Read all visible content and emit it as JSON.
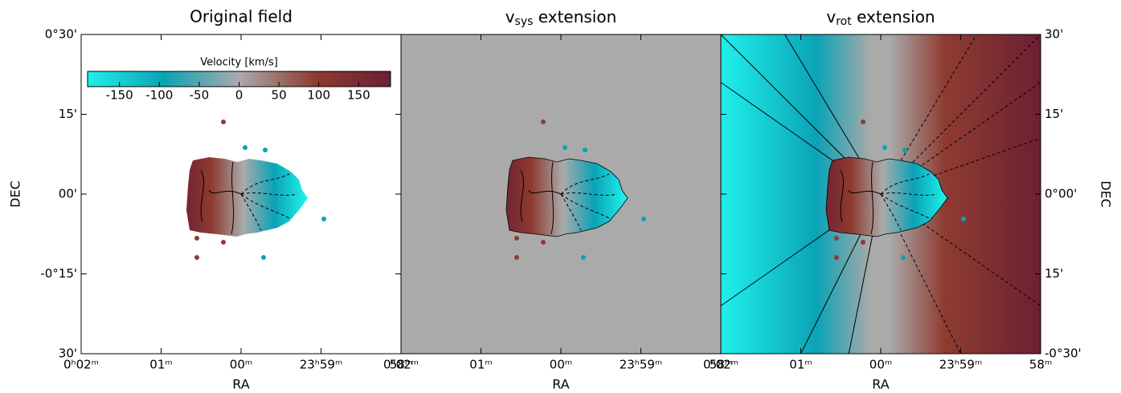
{
  "chart_data": [
    {
      "type": "image",
      "title": "Original field",
      "background": "none",
      "xlabel": "RA",
      "ylabel": "DEC",
      "xlim": [
        2,
        -2
      ],
      "xticks": [
        {
          "value": 2,
          "label": "0ʰ02ᵐ"
        },
        {
          "value": 1,
          "label": "01ᵐ"
        },
        {
          "value": 0,
          "label": "00ᵐ"
        },
        {
          "value": -1,
          "label": "23ʰ59ᵐ"
        },
        {
          "value": -2,
          "label": "58ᵐ"
        }
      ],
      "ylim": [
        -30,
        30
      ],
      "yticks": [
        {
          "value": 30,
          "label": "0°30'"
        },
        {
          "value": 15,
          "label": "15'"
        },
        {
          "value": 0,
          "label": "00'"
        },
        {
          "value": -15,
          "label": "-0°15'"
        },
        {
          "value": -30,
          "label": "30'"
        }
      ],
      "colors": [
        "#1ff0ec",
        "#0aa3b6",
        "#aaaaaa",
        "#8e3b31",
        "#6c2034"
      ],
      "colorbar": {
        "label": "Velocity [km/s]",
        "lim": [
          -190,
          190
        ],
        "ticks": [
          -150,
          -100,
          -50,
          0,
          50,
          100,
          150
        ]
      }
    },
    {
      "type": "image",
      "title": [
        "v",
        "sys",
        " extension"
      ],
      "background": "systemic",
      "xlabel": "RA",
      "xlim": [
        2,
        -2
      ],
      "xticks": [
        {
          "value": 2,
          "label": "0ʰ02ᵐ"
        },
        {
          "value": 1,
          "label": "01ᵐ"
        },
        {
          "value": 0,
          "label": "00ᵐ"
        },
        {
          "value": -1,
          "label": "23ʰ59ᵐ"
        },
        {
          "value": -2,
          "label": "58ᵐ"
        }
      ],
      "ylim": [
        -30,
        30
      ]
    },
    {
      "type": "image",
      "title": [
        "v",
        "rot",
        " extension"
      ],
      "background": "rotation",
      "xlabel": "RA",
      "y2label": "DEC",
      "xlim": [
        2,
        -2
      ],
      "xticks": [
        {
          "value": 2,
          "label": "0ʰ02ᵐ"
        },
        {
          "value": 1,
          "label": "01ᵐ"
        },
        {
          "value": 0,
          "label": "00ᵐ"
        },
        {
          "value": -1,
          "label": "23ʰ59ᵐ"
        },
        {
          "value": -2,
          "label": "58ᵐ"
        }
      ],
      "y2lim": [
        -30,
        30
      ],
      "y2ticks": [
        {
          "value": 30,
          "label": "30'"
        },
        {
          "value": 15,
          "label": "15'"
        },
        {
          "value": 0,
          "label": "0°00'"
        },
        {
          "value": -15,
          "label": "15'"
        },
        {
          "value": -30,
          "label": "-0°30'"
        }
      ]
    }
  ]
}
